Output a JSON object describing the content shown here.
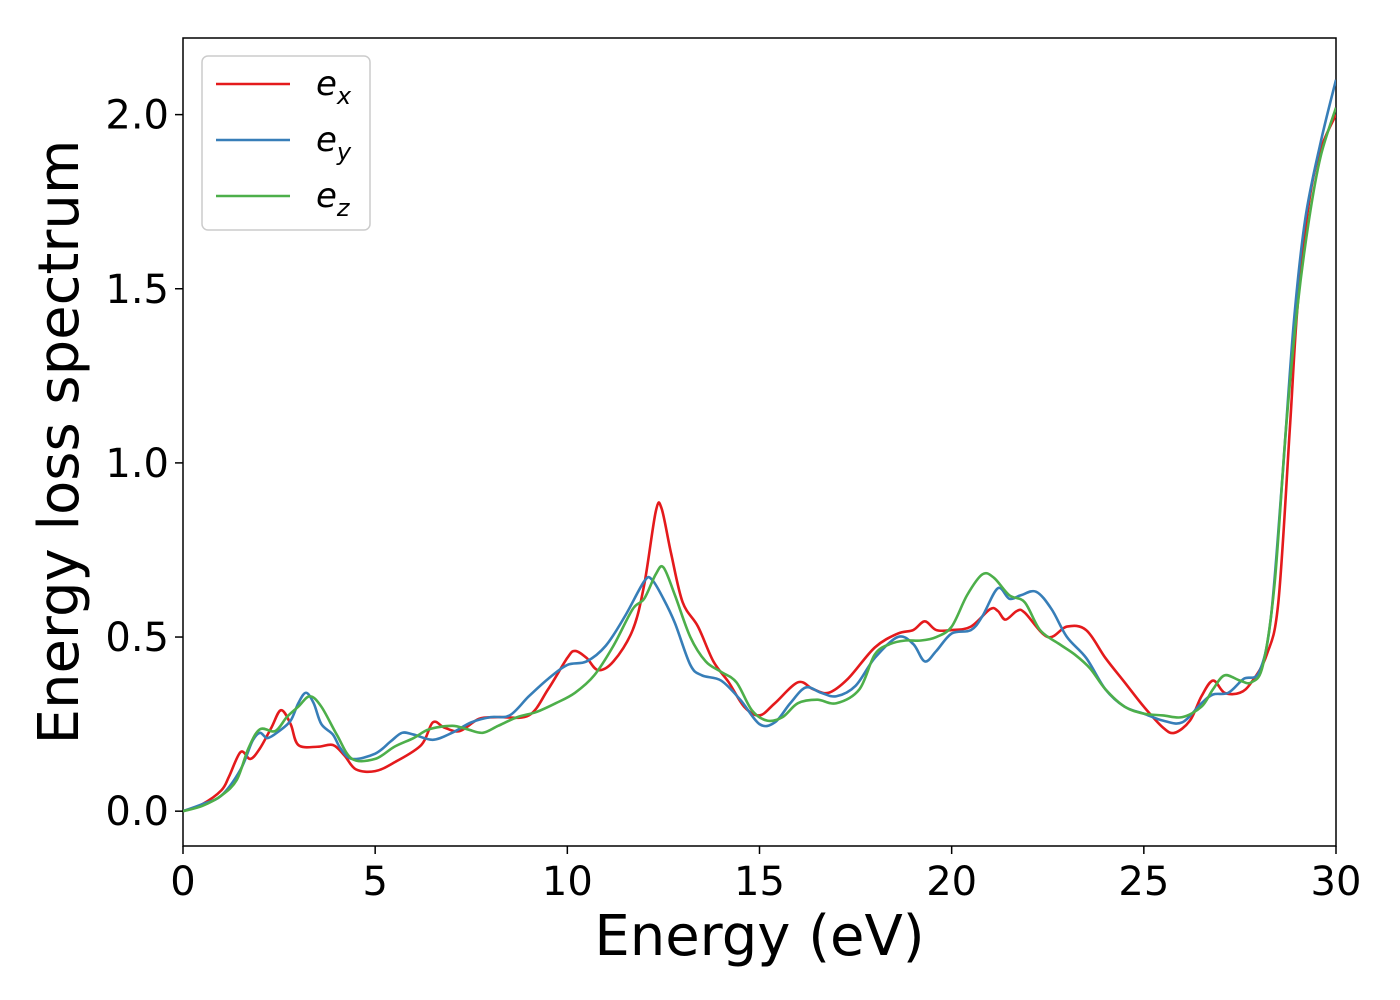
{
  "chart_data": {
    "type": "line",
    "xlabel": "Energy (eV)",
    "ylabel": "Energy loss spectrum",
    "xlim": [
      0,
      30
    ],
    "ylim": [
      -0.1,
      2.22
    ],
    "xticks": [
      "0",
      "5",
      "10",
      "15",
      "20",
      "25",
      "30"
    ],
    "yticks": [
      "0.0",
      "0.5",
      "1.0",
      "1.5",
      "2.0"
    ],
    "grid": false,
    "legend_position": "top-left",
    "series": [
      {
        "name": "e",
        "sub": "x",
        "color": "#e41a1c",
        "points": [
          [
            0,
            0
          ],
          [
            0.5,
            0.02
          ],
          [
            1.0,
            0.06
          ],
          [
            1.2,
            0.1
          ],
          [
            1.5,
            0.17
          ],
          [
            1.75,
            0.15
          ],
          [
            2.0,
            0.18
          ],
          [
            2.3,
            0.24
          ],
          [
            2.55,
            0.29
          ],
          [
            2.8,
            0.25
          ],
          [
            3.0,
            0.19
          ],
          [
            3.5,
            0.185
          ],
          [
            3.9,
            0.19
          ],
          [
            4.2,
            0.16
          ],
          [
            4.5,
            0.12
          ],
          [
            5.0,
            0.115
          ],
          [
            5.5,
            0.14
          ],
          [
            6.2,
            0.19
          ],
          [
            6.5,
            0.255
          ],
          [
            6.8,
            0.24
          ],
          [
            7.2,
            0.23
          ],
          [
            7.7,
            0.265
          ],
          [
            8.2,
            0.27
          ],
          [
            9.0,
            0.275
          ],
          [
            9.5,
            0.35
          ],
          [
            10.0,
            0.44
          ],
          [
            10.2,
            0.46
          ],
          [
            10.5,
            0.44
          ],
          [
            10.8,
            0.405
          ],
          [
            11.2,
            0.43
          ],
          [
            11.7,
            0.52
          ],
          [
            12.0,
            0.65
          ],
          [
            12.3,
            0.86
          ],
          [
            12.45,
            0.87
          ],
          [
            12.7,
            0.74
          ],
          [
            13.0,
            0.6
          ],
          [
            13.4,
            0.53
          ],
          [
            13.8,
            0.43
          ],
          [
            14.2,
            0.37
          ],
          [
            14.6,
            0.3
          ],
          [
            15.0,
            0.275
          ],
          [
            15.4,
            0.31
          ],
          [
            16.0,
            0.37
          ],
          [
            16.4,
            0.35
          ],
          [
            16.8,
            0.34
          ],
          [
            17.3,
            0.38
          ],
          [
            18.0,
            0.47
          ],
          [
            18.6,
            0.51
          ],
          [
            19.0,
            0.52
          ],
          [
            19.3,
            0.545
          ],
          [
            19.6,
            0.52
          ],
          [
            20.0,
            0.52
          ],
          [
            20.5,
            0.53
          ],
          [
            21.0,
            0.58
          ],
          [
            21.2,
            0.575
          ],
          [
            21.4,
            0.55
          ],
          [
            21.7,
            0.575
          ],
          [
            21.9,
            0.57
          ],
          [
            22.5,
            0.5
          ],
          [
            23.0,
            0.53
          ],
          [
            23.5,
            0.52
          ],
          [
            24.0,
            0.44
          ],
          [
            24.5,
            0.37
          ],
          [
            25.0,
            0.3
          ],
          [
            25.5,
            0.24
          ],
          [
            25.8,
            0.225
          ],
          [
            26.2,
            0.26
          ],
          [
            26.5,
            0.33
          ],
          [
            26.8,
            0.375
          ],
          [
            27.1,
            0.34
          ],
          [
            27.5,
            0.34
          ],
          [
            27.8,
            0.37
          ],
          [
            28.2,
            0.45
          ],
          [
            28.5,
            0.6
          ],
          [
            28.8,
            1.1
          ],
          [
            29.0,
            1.45
          ],
          [
            29.3,
            1.75
          ],
          [
            29.6,
            1.9
          ],
          [
            30.0,
            2.0
          ]
        ]
      },
      {
        "name": "e",
        "sub": "y",
        "color": "#377eb8",
        "points": [
          [
            0,
            0
          ],
          [
            0.5,
            0.02
          ],
          [
            1.0,
            0.045
          ],
          [
            1.5,
            0.12
          ],
          [
            1.8,
            0.2
          ],
          [
            2.0,
            0.225
          ],
          [
            2.2,
            0.21
          ],
          [
            2.5,
            0.23
          ],
          [
            2.8,
            0.26
          ],
          [
            3.0,
            0.31
          ],
          [
            3.2,
            0.34
          ],
          [
            3.4,
            0.31
          ],
          [
            3.6,
            0.25
          ],
          [
            3.9,
            0.22
          ],
          [
            4.1,
            0.18
          ],
          [
            4.4,
            0.15
          ],
          [
            5.0,
            0.165
          ],
          [
            5.4,
            0.2
          ],
          [
            5.7,
            0.225
          ],
          [
            6.0,
            0.22
          ],
          [
            6.5,
            0.205
          ],
          [
            7.0,
            0.225
          ],
          [
            7.5,
            0.255
          ],
          [
            8.0,
            0.27
          ],
          [
            8.5,
            0.275
          ],
          [
            9.0,
            0.33
          ],
          [
            9.5,
            0.38
          ],
          [
            10.0,
            0.42
          ],
          [
            10.5,
            0.43
          ],
          [
            11.0,
            0.475
          ],
          [
            11.5,
            0.56
          ],
          [
            12.0,
            0.66
          ],
          [
            12.2,
            0.665
          ],
          [
            12.5,
            0.61
          ],
          [
            12.8,
            0.54
          ],
          [
            13.2,
            0.42
          ],
          [
            13.5,
            0.39
          ],
          [
            14.0,
            0.375
          ],
          [
            14.5,
            0.32
          ],
          [
            15.0,
            0.25
          ],
          [
            15.4,
            0.255
          ],
          [
            15.8,
            0.31
          ],
          [
            16.2,
            0.355
          ],
          [
            16.6,
            0.34
          ],
          [
            17.0,
            0.33
          ],
          [
            17.5,
            0.36
          ],
          [
            18.0,
            0.44
          ],
          [
            18.6,
            0.5
          ],
          [
            19.0,
            0.48
          ],
          [
            19.3,
            0.43
          ],
          [
            19.6,
            0.46
          ],
          [
            20.0,
            0.51
          ],
          [
            20.5,
            0.52
          ],
          [
            20.8,
            0.56
          ],
          [
            21.2,
            0.64
          ],
          [
            21.5,
            0.61
          ],
          [
            21.8,
            0.62
          ],
          [
            22.2,
            0.63
          ],
          [
            22.6,
            0.58
          ],
          [
            23.0,
            0.5
          ],
          [
            23.5,
            0.44
          ],
          [
            24.0,
            0.35
          ],
          [
            24.5,
            0.3
          ],
          [
            25.0,
            0.28
          ],
          [
            25.5,
            0.26
          ],
          [
            26.0,
            0.255
          ],
          [
            26.5,
            0.31
          ],
          [
            26.8,
            0.335
          ],
          [
            27.2,
            0.34
          ],
          [
            27.6,
            0.38
          ],
          [
            28.0,
            0.4
          ],
          [
            28.3,
            0.55
          ],
          [
            28.6,
            0.95
          ],
          [
            28.9,
            1.4
          ],
          [
            29.2,
            1.7
          ],
          [
            29.6,
            1.92
          ],
          [
            30.0,
            2.1
          ]
        ]
      },
      {
        "name": "e",
        "sub": "z",
        "color": "#4daf4a",
        "points": [
          [
            0,
            0
          ],
          [
            0.5,
            0.015
          ],
          [
            1.0,
            0.045
          ],
          [
            1.4,
            0.09
          ],
          [
            1.7,
            0.18
          ],
          [
            2.0,
            0.235
          ],
          [
            2.4,
            0.23
          ],
          [
            2.7,
            0.27
          ],
          [
            3.0,
            0.3
          ],
          [
            3.3,
            0.33
          ],
          [
            3.6,
            0.3
          ],
          [
            4.0,
            0.22
          ],
          [
            4.4,
            0.15
          ],
          [
            5.0,
            0.15
          ],
          [
            5.5,
            0.185
          ],
          [
            6.0,
            0.21
          ],
          [
            6.4,
            0.235
          ],
          [
            7.0,
            0.245
          ],
          [
            7.4,
            0.235
          ],
          [
            7.8,
            0.225
          ],
          [
            8.2,
            0.245
          ],
          [
            8.7,
            0.27
          ],
          [
            9.2,
            0.285
          ],
          [
            9.7,
            0.31
          ],
          [
            10.2,
            0.34
          ],
          [
            10.7,
            0.39
          ],
          [
            11.2,
            0.475
          ],
          [
            11.7,
            0.58
          ],
          [
            12.0,
            0.61
          ],
          [
            12.3,
            0.68
          ],
          [
            12.5,
            0.7
          ],
          [
            12.8,
            0.62
          ],
          [
            13.2,
            0.5
          ],
          [
            13.6,
            0.43
          ],
          [
            14.0,
            0.4
          ],
          [
            14.4,
            0.37
          ],
          [
            14.8,
            0.29
          ],
          [
            15.2,
            0.26
          ],
          [
            15.6,
            0.27
          ],
          [
            16.0,
            0.31
          ],
          [
            16.5,
            0.32
          ],
          [
            17.0,
            0.31
          ],
          [
            17.6,
            0.35
          ],
          [
            18.0,
            0.45
          ],
          [
            18.4,
            0.48
          ],
          [
            18.8,
            0.49
          ],
          [
            19.2,
            0.49
          ],
          [
            19.6,
            0.5
          ],
          [
            20.0,
            0.53
          ],
          [
            20.4,
            0.62
          ],
          [
            20.8,
            0.68
          ],
          [
            21.1,
            0.67
          ],
          [
            21.5,
            0.62
          ],
          [
            21.9,
            0.6
          ],
          [
            22.3,
            0.52
          ],
          [
            22.8,
            0.48
          ],
          [
            23.2,
            0.45
          ],
          [
            23.6,
            0.41
          ],
          [
            24.0,
            0.35
          ],
          [
            24.5,
            0.3
          ],
          [
            25.0,
            0.28
          ],
          [
            25.5,
            0.275
          ],
          [
            26.0,
            0.27
          ],
          [
            26.5,
            0.3
          ],
          [
            26.8,
            0.35
          ],
          [
            27.1,
            0.39
          ],
          [
            27.5,
            0.375
          ],
          [
            27.8,
            0.37
          ],
          [
            28.1,
            0.42
          ],
          [
            28.4,
            0.65
          ],
          [
            28.7,
            1.1
          ],
          [
            29.0,
            1.45
          ],
          [
            29.3,
            1.7
          ],
          [
            29.6,
            1.88
          ],
          [
            30.0,
            2.02
          ]
        ]
      }
    ]
  }
}
